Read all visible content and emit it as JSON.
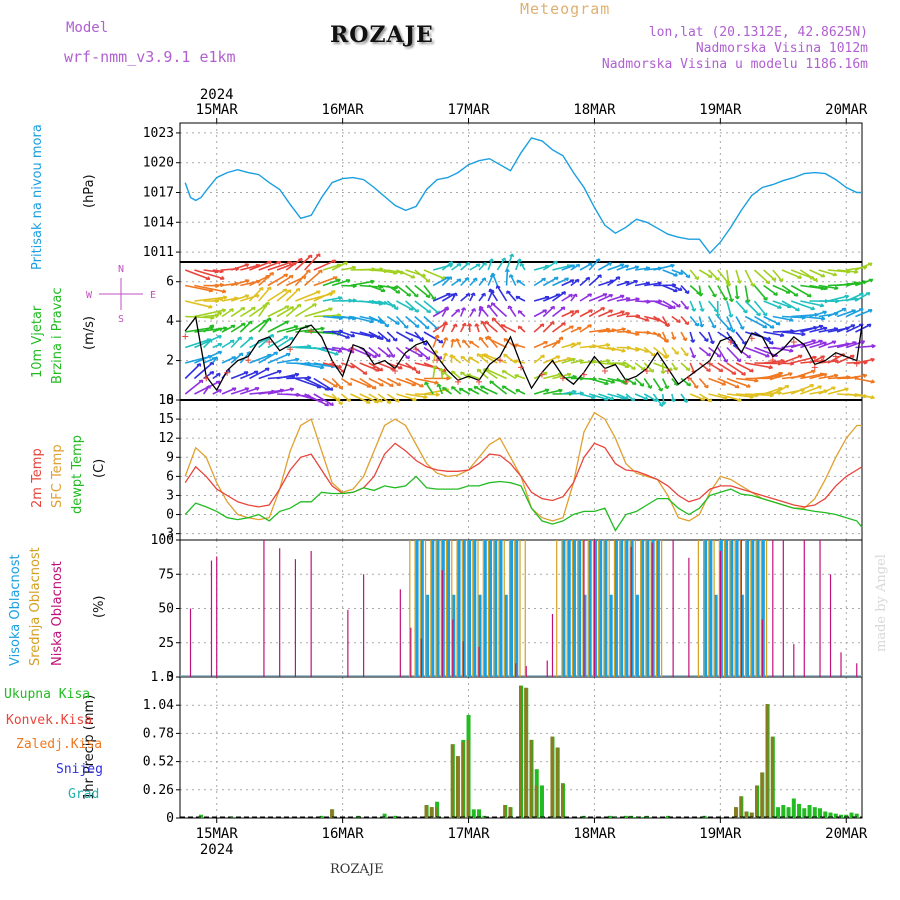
{
  "header": {
    "model_label": "Model",
    "model_name": "wrf-nmm_v3.9.1 e1km",
    "station": "ROZAJE",
    "title": "Meteogram",
    "coords": "lon,lat (20.1312E, 42.8625N)",
    "altitude": "Nadmorska Visina 1012m",
    "model_altitude": "Nadmorska Visina u modelu 1186.16m"
  },
  "footer": {
    "station": "ROZAJE",
    "credit": "made by Angel"
  },
  "colors": {
    "pressure": "#1a9fe0",
    "t2m": "#e8453c",
    "tsfc": "#e0a030",
    "dewpt": "#22bb22",
    "cloud_high": "#1a9fe0",
    "cloud_mid": "#d4a020",
    "cloud_low": "#c0107a",
    "precip_total": "#22bb22",
    "precip_conv": "#e8453c",
    "precip_frozen": "#f07820",
    "snow": "#3030e0",
    "graupel": "#20b0b0",
    "wind_arrow_label": "#c050c0"
  },
  "time_axis": {
    "year": "2024",
    "day_labels": [
      "15MAR",
      "16MAR",
      "17MAR",
      "18MAR",
      "19MAR",
      "20MAR"
    ]
  },
  "chart_data": [
    {
      "type": "line",
      "name": "pressure",
      "ylabel_lines": [
        "Pritisak na nivou mora"
      ],
      "unit": "(hPa)",
      "ylim": [
        1010,
        1024
      ],
      "yticks": [
        1011,
        1014,
        1017,
        1020,
        1023
      ],
      "x_hours_from_15MAR_00": [
        -6,
        -5,
        -4,
        -3,
        -2,
        0,
        2,
        4,
        6,
        8,
        10,
        12,
        14,
        16,
        18,
        20,
        22,
        24,
        26,
        28,
        30,
        32,
        34,
        36,
        38,
        40,
        42,
        44,
        46,
        48,
        50,
        52,
        54,
        56,
        58,
        60,
        62,
        64,
        66,
        68,
        70,
        72,
        74,
        76,
        78,
        80,
        82,
        84,
        86,
        88,
        90,
        92,
        94,
        96,
        98,
        100,
        102,
        104,
        106,
        108,
        110,
        112,
        114,
        116,
        118,
        120,
        122,
        123
      ],
      "series": [
        {
          "values": [
            1018,
            1016.5,
            1016.2,
            1016.5,
            1017.2,
            1018.5,
            1019.0,
            1019.3,
            1019.0,
            1018.8,
            1018.0,
            1017.3,
            1015.8,
            1014.4,
            1014.7,
            1016.5,
            1018.0,
            1018.4,
            1018.5,
            1018.3,
            1017.5,
            1016.6,
            1015.7,
            1015.2,
            1015.6,
            1017.3,
            1018.3,
            1018.5,
            1019.0,
            1019.8,
            1020.2,
            1020.4,
            1019.8,
            1019.2,
            1021.0,
            1022.5,
            1022.2,
            1021.3,
            1020.7,
            1019.0,
            1017.5,
            1015.5,
            1013.7,
            1012.9,
            1013.5,
            1014.3,
            1014.0,
            1013.4,
            1012.8,
            1012.5,
            1012.3,
            1012.3,
            1010.9,
            1012.0,
            1013.5,
            1015.2,
            1016.7,
            1017.5,
            1017.8,
            1018.2,
            1018.5,
            1018.9,
            1019.0,
            1018.9,
            1018.3,
            1017.5,
            1017.0,
            1017.0
          ]
        }
      ]
    },
    {
      "type": "line",
      "name": "wind",
      "ylabel_lines": [
        "10m Vjetar",
        "Brzina i Pravac"
      ],
      "unit": "(m/s)",
      "ylim": [
        0,
        7
      ],
      "yticks": [
        0,
        2,
        4,
        6
      ],
      "compass": {
        "n": "N",
        "s": "S",
        "e": "E",
        "w": "W"
      },
      "x_hours_from_15MAR_00": [
        -6,
        -4,
        -2,
        0,
        2,
        4,
        6,
        8,
        10,
        12,
        14,
        16,
        18,
        20,
        22,
        24,
        26,
        28,
        30,
        32,
        34,
        36,
        38,
        40,
        42,
        44,
        46,
        48,
        50,
        52,
        54,
        56,
        58,
        60,
        62,
        64,
        66,
        68,
        70,
        72,
        74,
        76,
        78,
        80,
        82,
        84,
        86,
        88,
        90,
        92,
        94,
        96,
        98,
        100,
        102,
        104,
        106,
        108,
        110,
        112,
        114,
        116,
        118,
        120,
        122,
        123
      ],
      "series": [
        {
          "name": "speed",
          "values": [
            3.5,
            4.2,
            1.2,
            0.5,
            1.5,
            2.0,
            2.2,
            3.0,
            3.2,
            2.5,
            2.8,
            3.6,
            3.8,
            3.2,
            2.0,
            1.2,
            2.8,
            2.6,
            1.8,
            2.0,
            1.6,
            2.4,
            2.8,
            3.0,
            2.2,
            1.5,
            1.0,
            1.2,
            1.0,
            1.8,
            2.2,
            3.2,
            1.8,
            0.6,
            1.4,
            2.0,
            1.2,
            0.8,
            1.4,
            2.2,
            1.6,
            1.8,
            1.0,
            1.2,
            1.6,
            2.4,
            1.6,
            0.8,
            1.2,
            1.6,
            2.0,
            3.0,
            3.2,
            2.4,
            3.4,
            3.2,
            2.2,
            2.6,
            3.2,
            2.8,
            1.8,
            2.0,
            2.4,
            2.2,
            2.0,
            3.8
          ]
        }
      ]
    },
    {
      "type": "line",
      "name": "temperature",
      "ylabel_lines": [
        "2m Temp",
        "SFC Temp",
        "dewpt Temp"
      ],
      "unit": "(C)",
      "ylim": [
        -4,
        18
      ],
      "yticks": [
        -3,
        0,
        3,
        6,
        9,
        12,
        15,
        18
      ],
      "x_hours_from_15MAR_00": [
        -6,
        -4,
        -2,
        0,
        2,
        4,
        6,
        8,
        10,
        12,
        14,
        16,
        18,
        20,
        22,
        24,
        26,
        28,
        30,
        32,
        34,
        36,
        38,
        40,
        42,
        44,
        46,
        48,
        50,
        52,
        54,
        56,
        58,
        60,
        62,
        64,
        66,
        68,
        70,
        72,
        74,
        76,
        78,
        80,
        82,
        84,
        86,
        88,
        90,
        92,
        94,
        96,
        98,
        100,
        102,
        104,
        106,
        108,
        110,
        112,
        114,
        116,
        118,
        120,
        122,
        123
      ],
      "series": [
        {
          "name": "2m Temp",
          "values": [
            5,
            7.5,
            6,
            4,
            3,
            2,
            1.5,
            1.2,
            1.5,
            4,
            7,
            9,
            9.5,
            7,
            4.5,
            3.3,
            3.5,
            4.2,
            6,
            9.5,
            11.2,
            10,
            8.5,
            7.5,
            7,
            6.8,
            6.8,
            7,
            8,
            9.5,
            9.3,
            8,
            6,
            3.5,
            2.5,
            2.2,
            2.8,
            5,
            9,
            11.2,
            10.5,
            8,
            7,
            6.8,
            6.2,
            5.5,
            4.5,
            3,
            2,
            2.5,
            4,
            4.5,
            4.5,
            4,
            3.5,
            3,
            2.5,
            2,
            1.5,
            1.2,
            1.5,
            2.5,
            4.5,
            6,
            7,
            7.5
          ]
        },
        {
          "name": "SFC Temp",
          "values": [
            6,
            10.5,
            9,
            5,
            2,
            0,
            -0.5,
            -0.8,
            -0.5,
            4,
            10,
            14,
            15,
            10,
            5,
            3.5,
            4,
            6,
            10,
            14,
            15,
            14,
            11,
            8,
            6.5,
            6,
            6.2,
            7,
            9,
            11,
            12,
            9,
            6,
            1,
            -0.5,
            -1,
            -0.5,
            5,
            13,
            16,
            15,
            12,
            8,
            6.5,
            6,
            5.5,
            3,
            -0.5,
            -1,
            0,
            3.5,
            6,
            5.5,
            4.5,
            3.5,
            2.5,
            2,
            1.5,
            1,
            1,
            2.5,
            5.5,
            9,
            12,
            14,
            14
          ]
        },
        {
          "name": "dewpt Temp",
          "values": [
            0,
            1.8,
            1.2,
            0.5,
            -0.5,
            -0.8,
            -0.5,
            0,
            -1,
            0.5,
            1,
            2,
            2,
            3.5,
            3.3,
            3.3,
            3.5,
            4.2,
            3.8,
            4.5,
            4.2,
            4.5,
            6,
            4.2,
            4,
            4,
            4,
            4.5,
            4.5,
            5,
            5.2,
            5,
            4.5,
            1,
            -1,
            -1.5,
            -1,
            0,
            0.5,
            0.5,
            1,
            -2.5,
            0,
            0.5,
            1.5,
            2.5,
            2.5,
            1,
            0,
            1,
            3,
            3.5,
            4,
            3.2,
            3,
            2.5,
            2,
            1.5,
            1,
            0.8,
            0.5,
            0.3,
            0,
            -0.5,
            -1,
            -2
          ]
        }
      ]
    },
    {
      "type": "bar",
      "name": "cloud",
      "ylabel_lines": [
        "Visoka Oblacnost",
        "Srednja Oblacnost",
        "Niska Oblacnost"
      ],
      "unit": "(%)",
      "ylim": [
        0,
        100
      ],
      "yticks": [
        0,
        25,
        50,
        75,
        100
      ],
      "low_hours": [
        -5,
        -1,
        0,
        9,
        12,
        15,
        18,
        25,
        28,
        35,
        37,
        39,
        43,
        45,
        47,
        50,
        57,
        59,
        63,
        64,
        70,
        72,
        79,
        83,
        87,
        90,
        96,
        100,
        104,
        106,
        108,
        110,
        112,
        115,
        117,
        119,
        122
      ],
      "low_values": [
        50,
        85,
        88,
        100,
        94,
        86,
        92,
        49,
        75,
        64,
        36,
        28,
        78,
        42,
        26,
        22,
        10,
        8,
        12,
        46,
        100,
        100,
        95,
        98,
        100,
        87,
        92,
        100,
        42,
        100,
        100,
        24,
        100,
        100,
        75,
        18,
        10
      ],
      "mid_ranges": [
        [
          37,
          59
        ],
        [
          65,
          85
        ],
        [
          92,
          105
        ]
      ],
      "high_ranges": [
        [
          38,
          57
        ],
        [
          66,
          84
        ],
        [
          93,
          104
        ]
      ]
    },
    {
      "type": "bar",
      "name": "precip",
      "ylabel_lines": [
        "1hr Precip (mm)"
      ],
      "unit": "",
      "ylim": [
        0,
        1.3
      ],
      "yticks": [
        0,
        0.26,
        0.52,
        0.78,
        1.04,
        1.3
      ],
      "legend": [
        "Ukupna Kisa",
        "Konvek.Kisa",
        "Zaledj.Kisa",
        "Snijeg",
        "Grad"
      ],
      "x_hours_from_15MAR_00": [
        -3,
        3,
        20,
        22,
        27,
        32,
        34,
        40,
        41,
        42,
        45,
        46,
        47,
        48,
        49,
        50,
        51,
        55,
        56,
        58,
        59,
        60,
        61,
        62,
        64,
        65,
        66,
        70,
        75,
        76,
        78,
        79,
        80,
        81,
        82,
        86,
        93,
        99,
        100,
        101,
        102,
        103,
        104,
        105,
        106,
        107,
        108,
        109,
        110,
        111,
        112,
        113,
        114,
        115,
        116,
        117,
        118,
        119,
        120,
        121,
        122
      ],
      "total": [
        0.03,
        0.01,
        0.02,
        0.08,
        0.02,
        0.04,
        0.02,
        0.12,
        0.1,
        0.15,
        0.68,
        0.57,
        0.72,
        0.95,
        0.08,
        0.08,
        0.02,
        0.12,
        0.1,
        1.22,
        1.2,
        0.72,
        0.45,
        0.3,
        0.75,
        0.65,
        0.32,
        0.02,
        0.02,
        0.01,
        0.02,
        0.02,
        0.01,
        0.01,
        0.02,
        0.02,
        0.02,
        0.1,
        0.2,
        0.06,
        0.05,
        0.3,
        0.42,
        1.05,
        0.75,
        0.1,
        0.12,
        0.1,
        0.18,
        0.13,
        0.09,
        0.12,
        0.1,
        0.09,
        0.06,
        0.05,
        0.04,
        0.03,
        0.03,
        0.05,
        0.04
      ],
      "convective": [
        0,
        0,
        0,
        0.08,
        0,
        0,
        0,
        0.12,
        0.1,
        0.1,
        0.68,
        0.57,
        0.7,
        0.72,
        0,
        0,
        0,
        0.12,
        0.1,
        1.22,
        1.2,
        0.72,
        0.3,
        0,
        0.75,
        0.65,
        0.32,
        0,
        0,
        0,
        0,
        0,
        0,
        0,
        0,
        0,
        0,
        0.1,
        0.2,
        0.06,
        0.05,
        0.3,
        0.42,
        1.05,
        0.75,
        0,
        0,
        0,
        0,
        0,
        0,
        0,
        0,
        0,
        0,
        0,
        0,
        0,
        0,
        0,
        0
      ]
    }
  ]
}
